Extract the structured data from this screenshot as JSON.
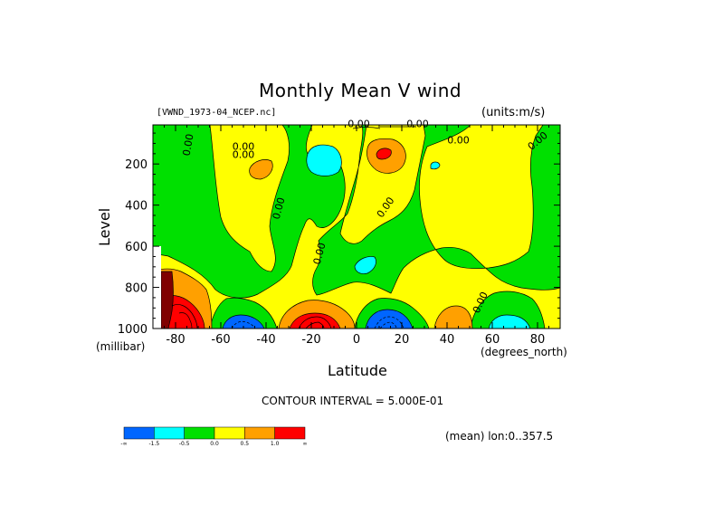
{
  "chart_data": {
    "type": "heatmap",
    "title": "Monthly Mean V wind",
    "dataset_label": "[VWND_1973-04_NCEP.nc]",
    "units_label": "(units:m/s)",
    "xlabel": "Latitude",
    "x_units": "(degrees_north)",
    "ylabel": "Level",
    "y_units": "(millibar)",
    "xlim": [
      -90,
      90
    ],
    "ylim": [
      1000,
      10
    ],
    "x_ticks": [
      -80,
      -60,
      -40,
      -20,
      0,
      20,
      40,
      60,
      80
    ],
    "y_ticks": [
      200,
      400,
      600,
      800,
      1000
    ],
    "contour_interval_text": "CONTOUR INTERVAL = 5.000E-01",
    "mean_note": "(mean) lon:0..357.5",
    "contour_labels": [
      "0.00",
      "0.00",
      "0.00",
      "0.00",
      "0.00",
      "0.00",
      "0.00",
      "0.00",
      "0.00",
      "0.00",
      "0.00"
    ],
    "colorbar": {
      "labels": [
        "-∞",
        "-1.5",
        "-0.5",
        "0.0",
        "0.5",
        "1.0",
        "∞"
      ],
      "colors": [
        "#0066ff",
        "#00ffff",
        "#00e000",
        "#ffff00",
        "#ffa000",
        "#ff0000"
      ]
    },
    "regions": [
      {
        "name": "cyan-upper-20N",
        "value_range": [
          -1.0,
          -0.5
        ],
        "lat": [
          -20,
          -12
        ],
        "level": [
          120,
          220
        ]
      },
      {
        "name": "orange-upper-40S",
        "value_range": [
          0.5,
          1.0
        ],
        "lat": [
          -46,
          -38
        ],
        "level": [
          170,
          250
        ]
      },
      {
        "name": "red-upper-12N",
        "value_range": [
          1.0,
          2.0
        ],
        "lat": [
          8,
          16
        ],
        "level": [
          140,
          190
        ]
      },
      {
        "name": "blue-surface-55S",
        "value_range": [
          -2.0,
          -1.5
        ],
        "lat": [
          -62,
          -46
        ],
        "level": [
          950,
          1000
        ]
      },
      {
        "name": "red-surface-20S",
        "value_range": [
          1.0,
          2.0
        ],
        "lat": [
          -28,
          -10
        ],
        "level": [
          930,
          1000
        ]
      },
      {
        "name": "blue-surface-15N",
        "value_range": [
          -2.0,
          -1.5
        ],
        "lat": [
          4,
          22
        ],
        "level": [
          930,
          1000
        ]
      },
      {
        "name": "red-surface-85S",
        "value_range": [
          1.0,
          2.0
        ],
        "lat": [
          -90,
          -78
        ],
        "level": [
          840,
          1000
        ]
      }
    ]
  }
}
